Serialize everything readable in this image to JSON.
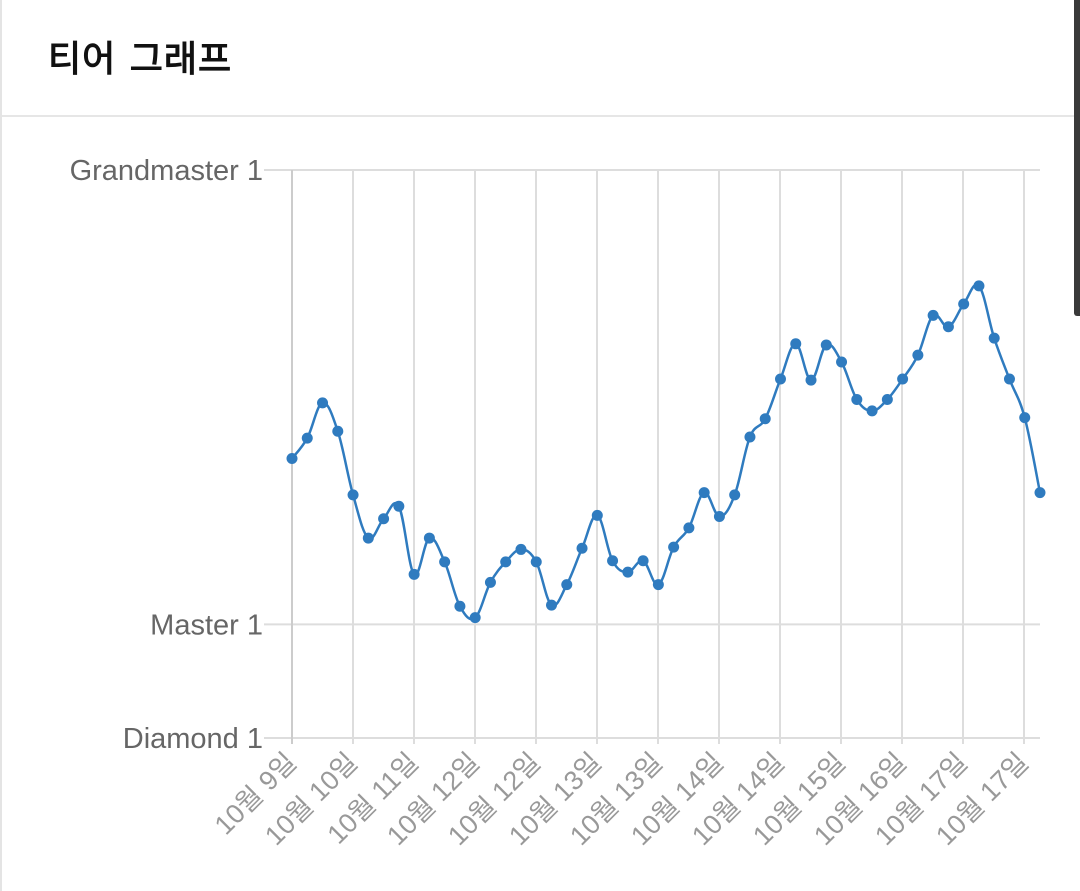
{
  "header": {
    "title": "티어 그래프"
  },
  "colors": {
    "line": "#2f7bbf",
    "grid": "#dddddd",
    "axis": "#cccccc"
  },
  "chart_data": {
    "type": "line",
    "title": "",
    "xlabel": "",
    "ylabel": "",
    "grid": true,
    "ylim": [
      0,
      500
    ],
    "yticks": [
      {
        "label": "Diamond 1",
        "value": 0
      },
      {
        "label": "Master 1",
        "value": 100
      },
      {
        "label": "Grandmaster 1",
        "value": 500
      }
    ],
    "xticks": [
      "10월 9일",
      "10월 10일",
      "10월 11일",
      "10월 12일",
      "10월 12일",
      "10월 13일",
      "10월 13일",
      "10월 14일",
      "10월 14일",
      "10월 15일",
      "10월 16일",
      "10월 17일",
      "10월 17일"
    ],
    "series": [
      {
        "values": [
          246,
          264,
          295,
          270,
          214,
          176,
          193,
          204,
          144,
          176,
          155,
          116,
          106,
          137,
          155,
          166,
          155,
          117,
          135,
          167,
          196,
          156,
          146,
          156,
          135,
          168,
          185,
          216,
          195,
          214,
          265,
          281,
          316,
          347,
          315,
          346,
          331,
          298,
          288,
          298,
          316,
          337,
          372,
          362,
          382,
          398,
          352,
          316,
          282,
          216
        ]
      }
    ]
  }
}
